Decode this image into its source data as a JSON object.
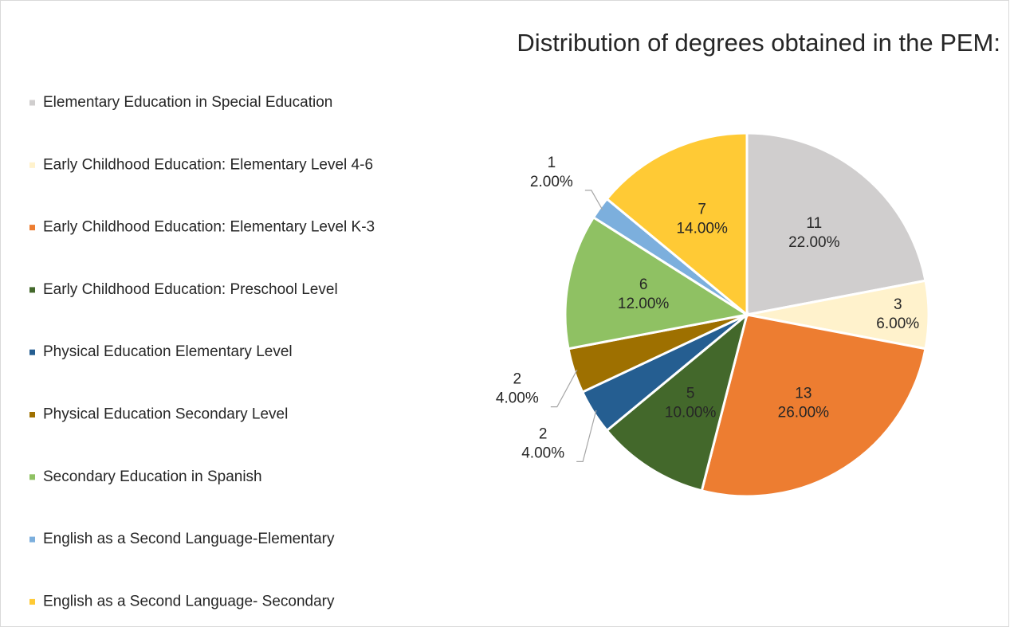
{
  "chart_data": {
    "type": "pie",
    "title": "Distribution of degrees obtained in the PEM:",
    "categories": [
      "Elementary Education in Special Education",
      "Early Childhood Education: Elementary Level 4-6",
      "Early Childhood Education: Elementary Level K-3",
      "Early Childhood Education: Preschool Level",
      "Physical Education Elementary Level",
      "Physical Education Secondary Level",
      "Secondary Education in Spanish",
      "English as a Second Language-Elementary",
      "English as a Second Language- Secondary"
    ],
    "values": [
      11,
      3,
      13,
      5,
      2,
      2,
      6,
      1,
      7
    ],
    "percentages": [
      22,
      6,
      26,
      10,
      4,
      4,
      12,
      2,
      14
    ],
    "percentage_labels": [
      "22.00%",
      "6.00%",
      "26.00%",
      "10.00%",
      "4.00%",
      "4.00%",
      "12.00%",
      "2.00%",
      "14.00%"
    ],
    "colors": [
      "#d0cece",
      "#fff2cc",
      "#ed7d31",
      "#43682b",
      "#255e91",
      "#9e7000",
      "#8fc163",
      "#7cafdd",
      "#ffca35"
    ],
    "legend": "left"
  }
}
